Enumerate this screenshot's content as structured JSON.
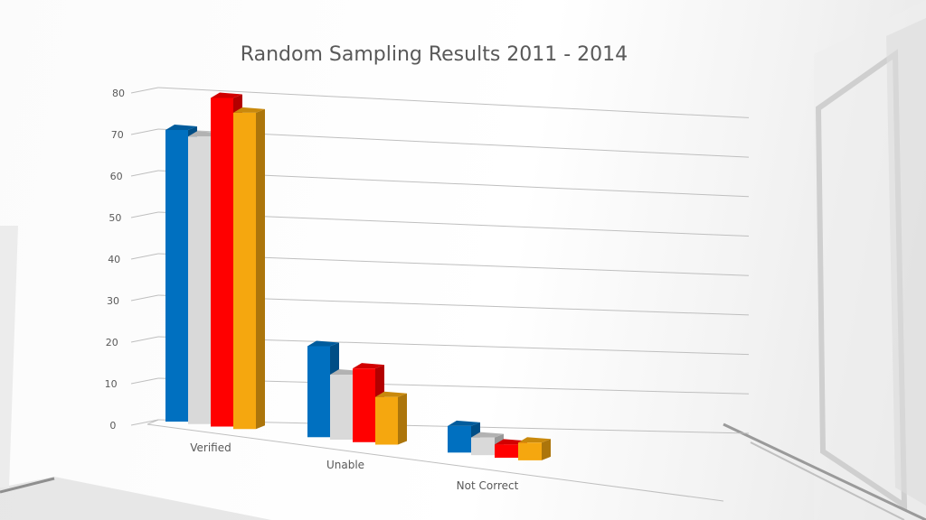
{
  "chart_data": {
    "type": "bar",
    "title": "Random Sampling Results 2011 - 2014",
    "categories": [
      "Verified",
      "Unable",
      "Not Correct"
    ],
    "series": [
      {
        "values": [
          71,
          21,
          6
        ],
        "color": "#0070C0"
      },
      {
        "values": [
          70,
          15,
          4
        ],
        "color": "#D9D9D9"
      },
      {
        "values": [
          80,
          17,
          3
        ],
        "color": "#FF0000"
      },
      {
        "values": [
          77,
          11,
          4
        ],
        "color": "#F5A70F"
      }
    ],
    "yticks": [
      "0",
      "10",
      "20",
      "30",
      "40",
      "50",
      "60",
      "70",
      "80"
    ],
    "ylim": [
      0,
      80
    ],
    "grid": true,
    "style": "3d-perspective",
    "legend": "none"
  }
}
